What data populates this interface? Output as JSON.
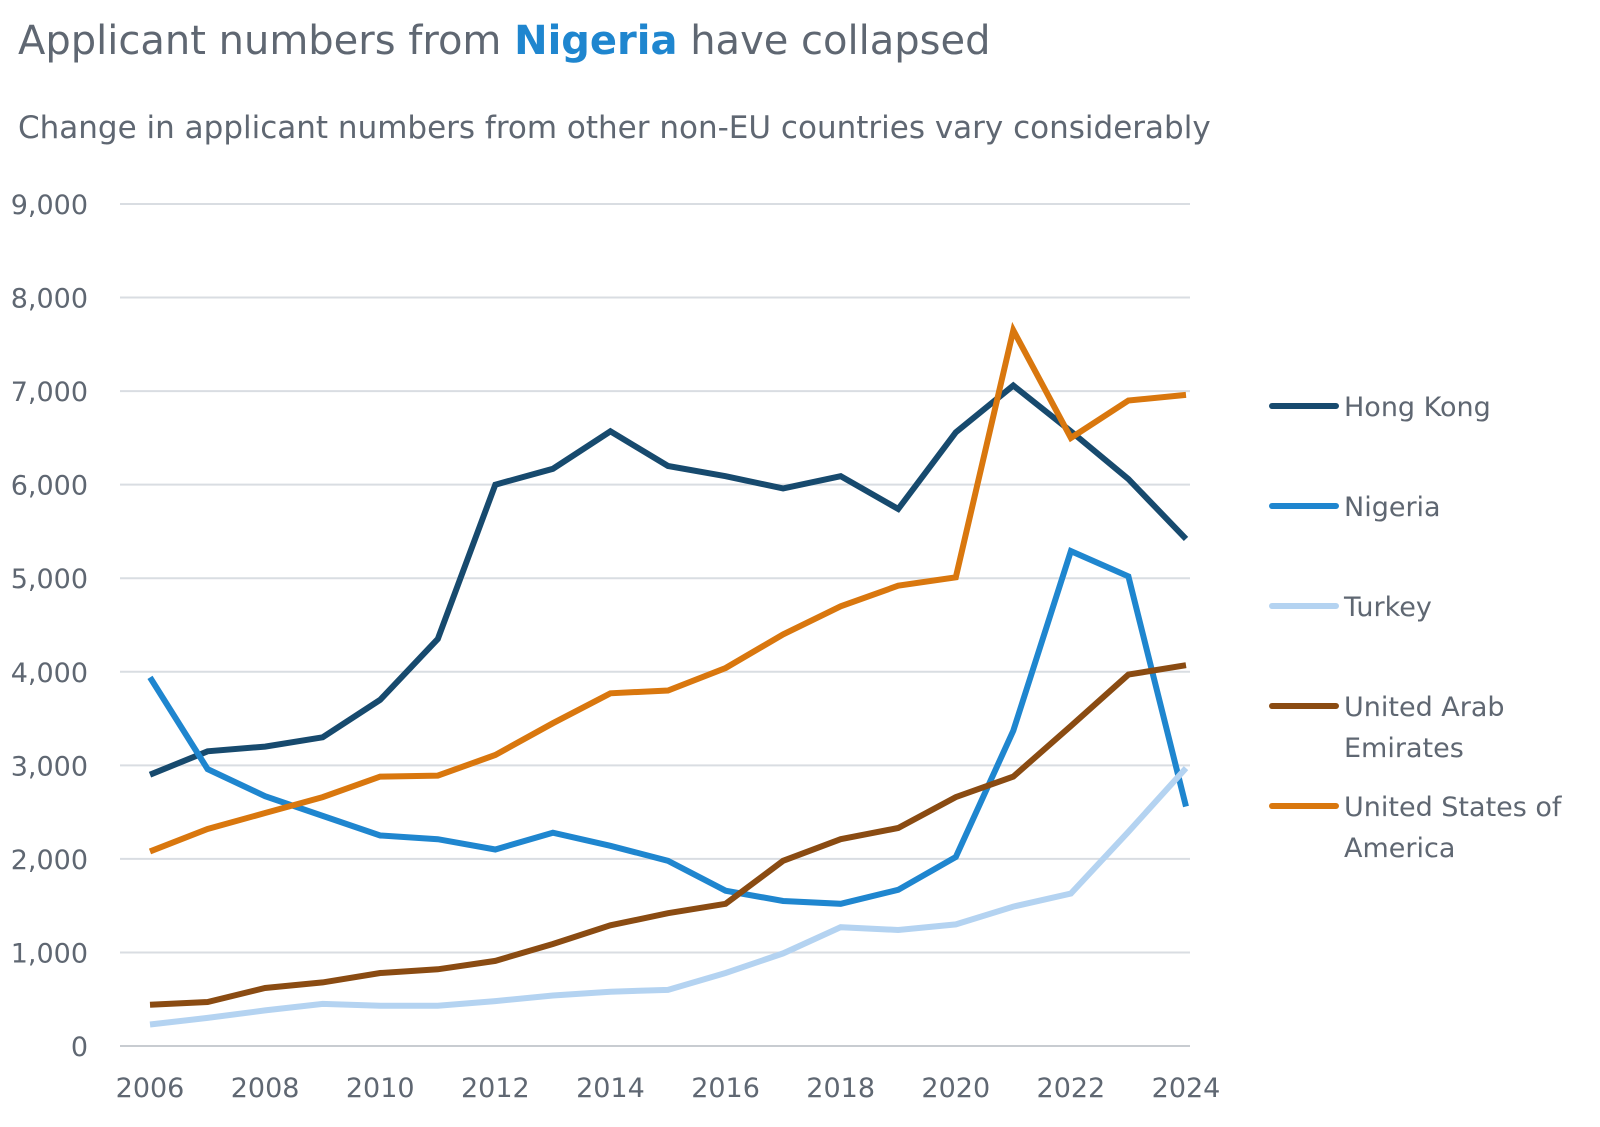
{
  "header": {
    "title_before": "Applicant numbers from ",
    "title_highlight": "Nigeria",
    "title_after": " have collapsed",
    "subtitle": "Change in applicant numbers from other non-EU countries vary considerably"
  },
  "chart_data": {
    "type": "line",
    "x": [
      2006,
      2007,
      2008,
      2009,
      2010,
      2011,
      2012,
      2013,
      2014,
      2015,
      2016,
      2017,
      2018,
      2019,
      2020,
      2021,
      2022,
      2023,
      2024
    ],
    "x_tick_labels": [
      "2006",
      "2008",
      "2010",
      "2012",
      "2014",
      "2016",
      "2018",
      "2020",
      "2022",
      "2024"
    ],
    "y_tick_labels": [
      "0",
      "1,000",
      "2,000",
      "3,000",
      "4,000",
      "5,000",
      "6,000",
      "7,000",
      "8,000",
      "9,000"
    ],
    "ylim": [
      0,
      9000
    ],
    "xlim": [
      2006,
      2024
    ],
    "grid": true,
    "legend_position": "right",
    "series": [
      {
        "name": "Hong Kong",
        "color": "#174a6e",
        "values": [
          2900,
          3150,
          3200,
          3300,
          3700,
          4350,
          6000,
          6170,
          6570,
          6200,
          6090,
          5960,
          6090,
          5740,
          6560,
          7060,
          6570,
          6060,
          5420
        ]
      },
      {
        "name": "Nigeria",
        "color": "#1f86cf",
        "values": [
          3940,
          2960,
          2670,
          2460,
          2250,
          2210,
          2100,
          2280,
          2140,
          1980,
          1660,
          1550,
          1520,
          1670,
          2020,
          3370,
          5290,
          5020,
          2560
        ]
      },
      {
        "name": "Turkey",
        "color": "#b4d3f1",
        "values": [
          230,
          300,
          380,
          450,
          430,
          430,
          480,
          540,
          580,
          600,
          780,
          990,
          1270,
          1240,
          1300,
          1490,
          1630,
          2290,
          2970
        ]
      },
      {
        "name": "United Arab Emirates",
        "legend_lines": [
          "United Arab",
          "Emirates"
        ],
        "color": "#8a4b12",
        "values": [
          440,
          470,
          620,
          680,
          780,
          820,
          910,
          1090,
          1290,
          1420,
          1520,
          1980,
          2210,
          2330,
          2660,
          2880,
          3420,
          3970,
          4070
        ]
      },
      {
        "name": "United States of America",
        "legend_lines": [
          "United States of",
          "America"
        ],
        "color": "#d9770e",
        "values": [
          2080,
          2320,
          2490,
          2660,
          2880,
          2890,
          3110,
          3450,
          3770,
          3800,
          4040,
          4400,
          4700,
          4920,
          5010,
          7650,
          6500,
          6900,
          6960
        ]
      }
    ]
  }
}
